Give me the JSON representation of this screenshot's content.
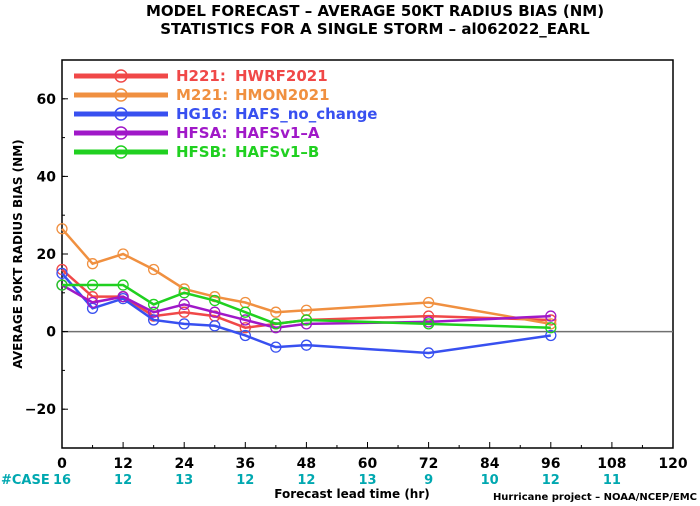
{
  "chart_data": {
    "type": "line",
    "title": "MODEL FORECAST – AVERAGE 50KT RADIUS BIAS (NM)",
    "subtitle": "STATISTICS FOR A SINGLE STORM – al062022_EARL",
    "xlabel": "Forecast lead time (hr)",
    "ylabel": "AVERAGE 50KT RADIUS BIAS (NM)",
    "xlim": [
      0,
      120
    ],
    "ylim": [
      -30,
      70
    ],
    "x_ticks": [
      "0",
      "12",
      "24",
      "36",
      "48",
      "60",
      "72",
      "84",
      "96",
      "108",
      "120"
    ],
    "y_ticks": [
      "−20",
      "0",
      "20",
      "40",
      "60"
    ],
    "legend_position": "top-left",
    "case_label": "#CASE",
    "case_counts": [
      {
        "x": 0,
        "count": "16"
      },
      {
        "x": 12,
        "count": "12"
      },
      {
        "x": 24,
        "count": "13"
      },
      {
        "x": 36,
        "count": "12"
      },
      {
        "x": 48,
        "count": "12"
      },
      {
        "x": 60,
        "count": "13"
      },
      {
        "x": 72,
        "count": "9"
      },
      {
        "x": 84,
        "count": "10"
      },
      {
        "x": 96,
        "count": "12"
      },
      {
        "x": 108,
        "count": "11"
      }
    ],
    "credit": "Hurricane project – NOAA/NCEP/EMC",
    "series": [
      {
        "code": "H221",
        "name": "HWRF2021",
        "color": "#f04848",
        "x": [
          0,
          6,
          12,
          18,
          24,
          30,
          36,
          42,
          48,
          72,
          96
        ],
        "y": [
          16,
          9,
          9,
          4,
          5,
          4,
          1,
          2,
          3,
          4,
          3
        ]
      },
      {
        "code": "M221",
        "name": "HMON2021",
        "color": "#f09040",
        "x": [
          0,
          6,
          12,
          18,
          24,
          30,
          36,
          42,
          48,
          72,
          96
        ],
        "y": [
          26.5,
          17.5,
          20,
          16,
          11,
          9,
          7.5,
          5,
          5.5,
          7.5,
          2
        ]
      },
      {
        "code": "HG16",
        "name": "HAFS_no_change",
        "color": "#3850f0",
        "x": [
          0,
          6,
          12,
          18,
          24,
          30,
          36,
          42,
          48,
          72,
          96
        ],
        "y": [
          15,
          6,
          8.5,
          3,
          2,
          1.5,
          -1,
          -4,
          -3.5,
          -5.5,
          -1
        ]
      },
      {
        "code": "HFSA",
        "name": "HAFSv1–A",
        "color": "#a018c8",
        "x": [
          0,
          6,
          12,
          18,
          24,
          30,
          36,
          42,
          48,
          72,
          96
        ],
        "y": [
          12,
          7.5,
          9,
          5,
          7,
          5,
          3,
          1,
          2,
          2.5,
          4
        ]
      },
      {
        "code": "HFSB",
        "name": "HAFSv1–B",
        "color": "#20d020",
        "x": [
          0,
          6,
          12,
          18,
          24,
          30,
          36,
          42,
          48,
          72,
          96
        ],
        "y": [
          12,
          12,
          12,
          7,
          10,
          8,
          5,
          2,
          3,
          2,
          1
        ]
      }
    ]
  }
}
